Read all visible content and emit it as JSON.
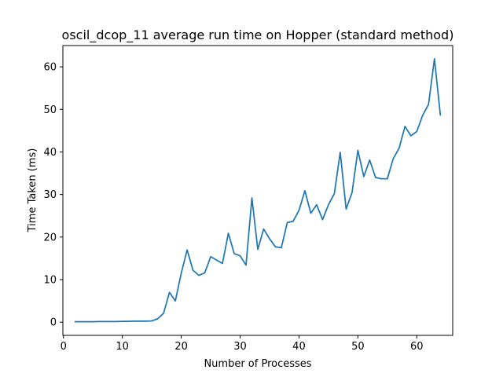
{
  "chart_data": {
    "type": "line",
    "title": "oscil_dcop_11 average run time on Hopper (standard method)",
    "xlabel": "Number of Processes",
    "ylabel": "Time Taken (ms)",
    "xlim": [
      -0.1,
      66.1
    ],
    "ylim": [
      -3.1,
      65.0
    ],
    "xticks": [
      0,
      10,
      20,
      30,
      40,
      50,
      60
    ],
    "yticks": [
      0,
      10,
      20,
      30,
      40,
      50,
      60
    ],
    "grid": false,
    "line_color": "#1f77b4",
    "series": [
      {
        "x": [
          2,
          3,
          4,
          5,
          6,
          7,
          8,
          9,
          10,
          11,
          12,
          13,
          14,
          15,
          16,
          17,
          18,
          19,
          20,
          21,
          22,
          23,
          24,
          25,
          26,
          27,
          28,
          29,
          30,
          31,
          32,
          33,
          34,
          35,
          36,
          37,
          38,
          39,
          40,
          41,
          42,
          43,
          44,
          45,
          46,
          47,
          48,
          49,
          50,
          51,
          52,
          53,
          54,
          55,
          56,
          57,
          58,
          59,
          60,
          61,
          62,
          63,
          64
        ],
        "y": [
          0.1,
          0.1,
          0.1,
          0.1,
          0.15,
          0.15,
          0.15,
          0.15,
          0.2,
          0.2,
          0.25,
          0.25,
          0.25,
          0.3,
          0.8,
          2.1,
          7.0,
          5.0,
          11.5,
          17.0,
          12.2,
          11.0,
          11.6,
          15.4,
          14.6,
          13.8,
          20.9,
          16.1,
          15.6,
          13.4,
          29.2,
          17.1,
          21.9,
          19.6,
          17.7,
          17.5,
          23.4,
          23.7,
          26.3,
          30.9,
          25.6,
          27.6,
          24.1,
          27.6,
          30.2,
          39.9,
          26.6,
          30.4,
          40.4,
          34.2,
          38.1,
          34.0,
          33.7,
          33.7,
          38.4,
          40.9,
          46.0,
          43.8,
          44.8,
          48.6,
          51.2,
          61.9,
          48.7
        ]
      }
    ]
  }
}
